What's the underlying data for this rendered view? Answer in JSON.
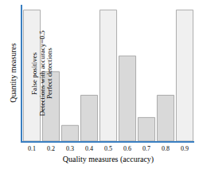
{
  "chart_data": {
    "type": "bar",
    "x_label": "Quality measures (accuracy)",
    "y_label": "Quantity measures",
    "categories": [
      "0.1",
      "0.2",
      "0.3",
      "0.4",
      "0.5",
      "0.6",
      "0.7",
      "0.8",
      "0.9"
    ],
    "values": [
      10,
      5.3,
      1.2,
      3.5,
      10,
      6.5,
      1.8,
      3.5,
      10
    ],
    "colors": [
      "#f0f0f0",
      "#d9d9d9",
      "#d9d9d9",
      "#d9d9d9",
      "#f0f0f0",
      "#d9d9d9",
      "#d9d9d9",
      "#d9d9d9",
      "#f0f0f0"
    ],
    "ylim": [
      0,
      10.4
    ],
    "tick_labels": "x",
    "grid": false,
    "annotations": [
      {
        "category": "0.1",
        "text": "False positives"
      },
      {
        "category": "0.5",
        "text": "Detections with accuracy=0.5"
      },
      {
        "category": "0.9",
        "text": "Perfect detections"
      }
    ]
  }
}
